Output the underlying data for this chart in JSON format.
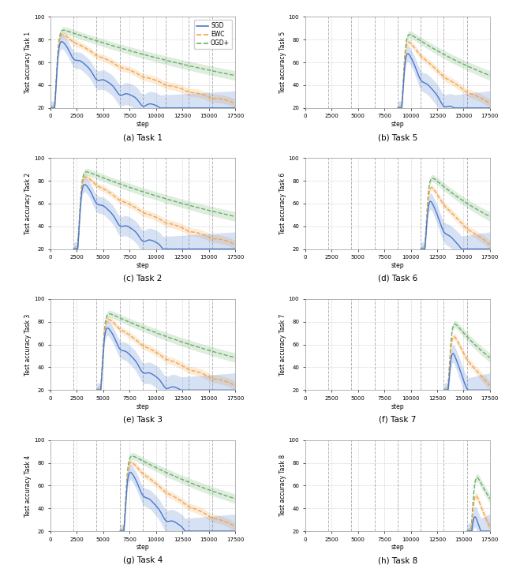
{
  "tasks": [
    {
      "label": "Task 1",
      "letter": "a",
      "task_idx": 1
    },
    {
      "label": "Task 5",
      "letter": "b",
      "task_idx": 5
    },
    {
      "label": "Task 2",
      "letter": "c",
      "task_idx": 2
    },
    {
      "label": "Task 6",
      "letter": "d",
      "task_idx": 6
    },
    {
      "label": "Task 3",
      "letter": "e",
      "task_idx": 3
    },
    {
      "label": "Task 7",
      "letter": "f",
      "task_idx": 7
    },
    {
      "label": "Task 4",
      "letter": "g",
      "task_idx": 4
    },
    {
      "label": "Task 8",
      "letter": "h",
      "task_idx": 8
    }
  ],
  "total_steps": 17500,
  "n_tasks": 8,
  "x_ticks": [
    0,
    2500,
    5000,
    7500,
    10000,
    12500,
    15000,
    17500
  ],
  "x_tick_labels": [
    "0",
    "2500",
    "5000",
    "7500",
    "10000",
    "12500",
    "15000",
    "17500"
  ],
  "yticks": [
    20,
    40,
    60,
    80,
    100
  ],
  "ylim": [
    20,
    100
  ],
  "colors": {
    "sgd": "#4878cf",
    "ewc": "#f4a44a",
    "ogd": "#6aaf6a"
  },
  "alpha_fill": 0.22,
  "legend_labels": [
    "SGD",
    "EWC",
    "OGD+"
  ],
  "ylabel_prefix": "Test accuracy Task ",
  "xlabel": "step",
  "fig_bg": "#ffffff",
  "grid_color": "#cccccc",
  "vline_color": "#aaaaaa",
  "hspace": 0.55,
  "wspace": 0.38
}
